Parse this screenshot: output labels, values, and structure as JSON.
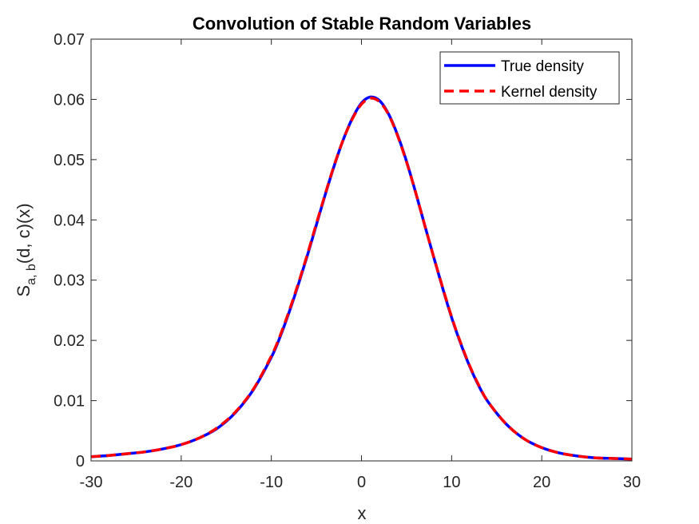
{
  "chart_data": {
    "type": "line",
    "title": "Convolution of Stable Random Variables",
    "xlabel": "x",
    "ylabel_main": "S",
    "ylabel_sub": "a, b",
    "ylabel_rest": "(d, c)(x)",
    "xlim": [
      -30,
      30
    ],
    "ylim": [
      0,
      0.07
    ],
    "xticks": [
      -30,
      -20,
      -10,
      0,
      10,
      20,
      30
    ],
    "xtick_labels": [
      "-30",
      "-20",
      "-10",
      "0",
      "10",
      "20",
      "30"
    ],
    "yticks": [
      0,
      0.01,
      0.02,
      0.03,
      0.04,
      0.05,
      0.06,
      0.07
    ],
    "ytick_labels": [
      "0",
      "0.01",
      "0.02",
      "0.03",
      "0.04",
      "0.05",
      "0.06",
      "0.07"
    ],
    "legend_position": "top-right",
    "x": [
      -30,
      -28,
      -26,
      -24,
      -22,
      -20,
      -18,
      -16,
      -14,
      -12,
      -10,
      -9,
      -8,
      -7,
      -6,
      -5,
      -4,
      -3,
      -2,
      -1,
      0,
      1,
      2,
      3,
      4,
      5,
      6,
      7,
      8,
      9,
      10,
      11,
      12,
      13,
      14,
      16,
      18,
      20,
      22,
      24,
      26,
      28,
      30
    ],
    "series": [
      {
        "name": "True density",
        "color": "#0000ff",
        "style": "solid",
        "values": [
          0.0007,
          0.0009,
          0.0012,
          0.0015,
          0.002,
          0.0027,
          0.0038,
          0.0054,
          0.008,
          0.0118,
          0.0172,
          0.0207,
          0.0248,
          0.0293,
          0.0341,
          0.0392,
          0.0443,
          0.0491,
          0.0534,
          0.0569,
          0.0594,
          0.0604,
          0.0598,
          0.0576,
          0.0541,
          0.0497,
          0.0446,
          0.0392,
          0.0339,
          0.0287,
          0.0238,
          0.0195,
          0.0157,
          0.0125,
          0.0099,
          0.0062,
          0.0037,
          0.0022,
          0.0013,
          0.0008,
          0.0005,
          0.0004,
          0.0003
        ]
      },
      {
        "name": "Kernel density",
        "color": "#ff0000",
        "style": "dashed",
        "values": [
          0.0007,
          0.0009,
          0.0012,
          0.0015,
          0.002,
          0.0027,
          0.0038,
          0.0055,
          0.0081,
          0.0119,
          0.0174,
          0.0209,
          0.025,
          0.0295,
          0.0343,
          0.0394,
          0.0444,
          0.0492,
          0.0534,
          0.0568,
          0.0592,
          0.0602,
          0.0596,
          0.0575,
          0.054,
          0.0496,
          0.0446,
          0.0392,
          0.0339,
          0.0288,
          0.0239,
          0.0196,
          0.0158,
          0.0126,
          0.0099,
          0.0062,
          0.0037,
          0.0022,
          0.0013,
          0.0008,
          0.0005,
          0.0004,
          0.0003
        ]
      }
    ]
  }
}
